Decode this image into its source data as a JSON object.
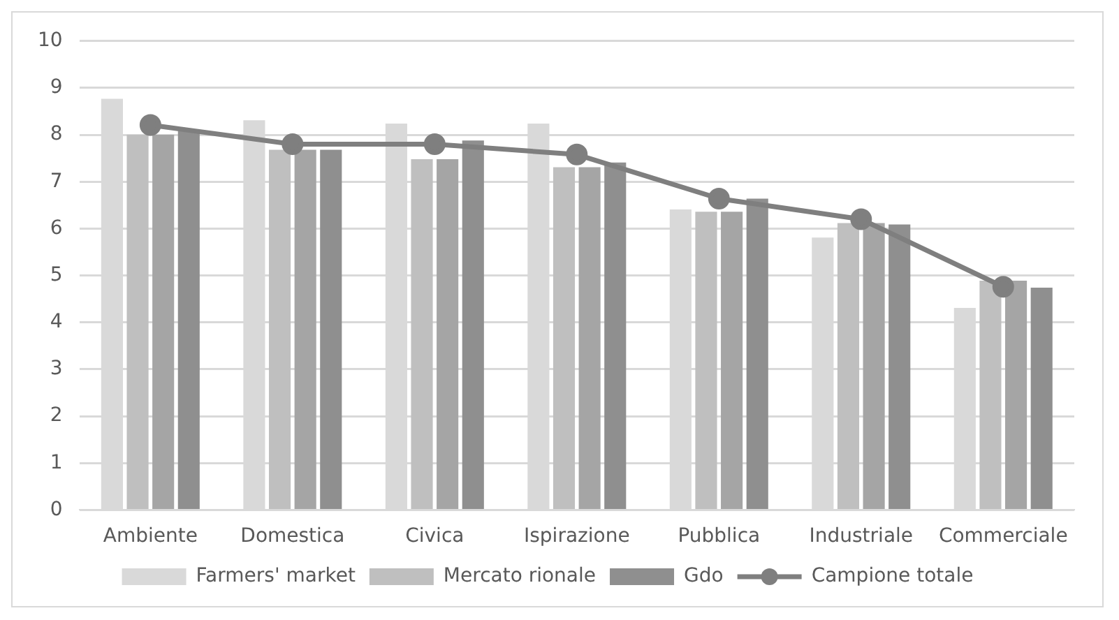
{
  "chart_data": {
    "type": "bar",
    "categories": [
      "Ambiente",
      "Domestica",
      "Civica",
      "Ispirazione",
      "Pubblica",
      "Industriale",
      "Commerciale"
    ],
    "series": [
      {
        "name": "Farmers' market",
        "color": "#d9d9d9",
        "values": [
          8.77,
          8.31,
          8.24,
          8.24,
          6.41,
          5.81,
          4.31
        ]
      },
      {
        "name": "Mercato rionale",
        "color": "#bfbfbf",
        "values": [
          8.0,
          7.68,
          7.48,
          7.31,
          6.36,
          6.12,
          4.89
        ]
      },
      {
        "color": "#a5a5a5",
        "values": [
          8.0,
          7.68,
          7.48,
          7.31,
          6.36,
          6.12,
          4.89
        ]
      },
      {
        "name": "Gdo",
        "color": "#8f8f8f",
        "values": [
          8.08,
          7.68,
          7.88,
          7.41,
          6.64,
          6.09,
          4.74
        ]
      },
      {
        "name": "Campione totale",
        "type": "line",
        "color": "#7f7f7f",
        "values": [
          8.21,
          7.8,
          7.8,
          7.58,
          6.64,
          6.2,
          4.76
        ]
      }
    ],
    "ylim": [
      0,
      10
    ],
    "yticks": [
      0,
      1,
      2,
      3,
      4,
      5,
      6,
      7,
      8,
      9,
      10
    ],
    "grid": "y",
    "legend": "bottom",
    "marker": "circle"
  }
}
